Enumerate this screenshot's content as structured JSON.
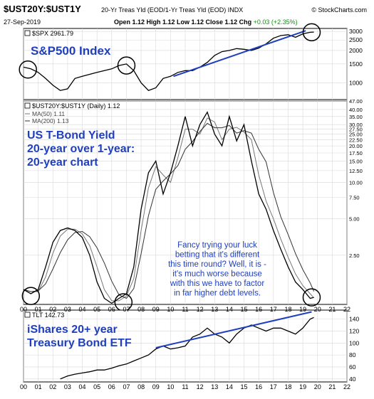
{
  "header": {
    "ticker": "$UST20Y:$UST1Y",
    "subtitle": "20-Yr Treas Yld (EOD/1-Yr Treas Yld (EOD) INDX",
    "brand": "© StockCharts.com",
    "date": "27-Sep-2019",
    "ohlc": "Open 1.12  High 1.12  Low 1.12  Close 1.12  Chg",
    "change": "+0.03 (+2.35%)"
  },
  "chart_data": [
    {
      "type": "line",
      "panel": "top",
      "legend": "$SPX 2961.79",
      "annotation": "S&P500 Index",
      "annotation_color": "#1f3fbf",
      "yaxis_scale": "log",
      "ylim": [
        700,
        3200
      ],
      "yticks": [
        "3000",
        "2500",
        "2000",
        "1500",
        "1000"
      ],
      "ytick_values": [
        3000,
        2500,
        2000,
        1500,
        1000
      ],
      "x": [
        0,
        0.5,
        1,
        1.5,
        2,
        2.5,
        3,
        3.5,
        4,
        4.5,
        5,
        5.5,
        6,
        6.5,
        7,
        7.5,
        8,
        8.5,
        9,
        9.5,
        10,
        10.5,
        11,
        11.5,
        12,
        12.5,
        13,
        13.5,
        14,
        14.5,
        15,
        15.5,
        16,
        16.5,
        17,
        17.5,
        18,
        18.5,
        19,
        19.5,
        19.75
      ],
      "values": [
        1400,
        1350,
        1250,
        1100,
        950,
        850,
        880,
        1100,
        1150,
        1200,
        1250,
        1300,
        1350,
        1450,
        1500,
        1300,
        1000,
        850,
        900,
        1100,
        1150,
        1250,
        1300,
        1300,
        1400,
        1550,
        1800,
        1950,
        2000,
        2080,
        2050,
        2000,
        2100,
        2300,
        2600,
        2750,
        2800,
        2650,
        2850,
        2950,
        2961.79
      ],
      "trendline": {
        "x": [
          10.2,
          19.2
        ],
        "y": [
          1150,
          3050
        ],
        "color": "#1f3fbf"
      },
      "circles": [
        {
          "x": 0.3,
          "y": 1330
        },
        {
          "x": 7.0,
          "y": 1450
        },
        {
          "x": 19.6,
          "y": 2950
        }
      ]
    },
    {
      "type": "line",
      "panel": "middle",
      "legend": "$UST20Y:$UST1Y (Daily) 1.12",
      "legend_ma50": "MA(50) 1.11",
      "legend_ma200": "MA(200) 1.13",
      "annotation_lines": [
        "US T-Bond Yield",
        "20-year over 1-year:",
        "20-year chart"
      ],
      "annotation_color": "#1f3fbf",
      "note_lines": [
        "Fancy trying your luck",
        "betting that it's different",
        "this time round? Well, it is -",
        "it's much worse because",
        "with this we have to factor",
        "in far higher debt levels."
      ],
      "note_color": "#1f3fbf",
      "yaxis_scale": "log",
      "ylim": [
        0.98,
        47
      ],
      "yticks": [
        "47.00",
        "40.00",
        "35.00",
        "30.00",
        "27.50",
        "25.00",
        "22.50",
        "20.00",
        "17.50",
        "15.00",
        "12.50",
        "10.00",
        "7.50",
        "5.00",
        "2.50"
      ],
      "ytick_values": [
        47,
        40,
        35,
        30,
        27.5,
        25,
        22.5,
        20,
        17.5,
        15,
        12.5,
        10,
        7.5,
        5,
        2.5
      ],
      "x": [
        0,
        0.5,
        1,
        1.5,
        2,
        2.5,
        3,
        3.5,
        4,
        4.5,
        5,
        5.5,
        6,
        6.5,
        7,
        7.5,
        8,
        8.5,
        9,
        9.5,
        10,
        10.5,
        11,
        11.5,
        12,
        12.5,
        13,
        13.5,
        14,
        14.5,
        15,
        15.5,
        16,
        16.5,
        17,
        17.5,
        18,
        18.5,
        19,
        19.5,
        19.75
      ],
      "values": [
        1.3,
        1.2,
        1.3,
        2.0,
        3.2,
        4.0,
        4.2,
        4.0,
        3.5,
        2.5,
        1.5,
        1.1,
        1.0,
        1.1,
        1.2,
        2.0,
        6.0,
        12,
        15,
        8,
        12,
        20,
        35,
        20,
        30,
        38,
        25,
        20,
        35,
        22,
        30,
        15,
        8,
        6,
        4,
        2.8,
        2.0,
        1.5,
        1.3,
        1.1,
        1.12
      ],
      "circles": [
        {
          "x": 0.5,
          "y": 1.15
        },
        {
          "x": 6.8,
          "y": 1.02
        },
        {
          "x": 19.6,
          "y": 1.12
        }
      ]
    },
    {
      "type": "line",
      "panel": "bottom",
      "legend": "TLT 142.73",
      "annotation_lines": [
        "iShares  20+  year",
        "Treasury Bond ETF"
      ],
      "annotation_color": "#1f3fbf",
      "ylim": [
        35,
        155
      ],
      "yticks": [
        "140",
        "120",
        "100",
        "80",
        "60",
        "40"
      ],
      "ytick_values": [
        140,
        120,
        100,
        80,
        60,
        40
      ],
      "x": [
        2.5,
        3,
        3.5,
        4,
        4.5,
        5,
        5.5,
        6,
        6.5,
        7,
        7.5,
        8,
        8.5,
        9,
        9.5,
        10,
        10.5,
        11,
        11.5,
        12,
        12.5,
        13,
        13.5,
        14,
        14.5,
        15,
        15.5,
        16,
        16.5,
        17,
        17.5,
        18,
        18.5,
        19,
        19.5,
        19.75
      ],
      "values": [
        40,
        45,
        48,
        50,
        52,
        55,
        55,
        58,
        62,
        65,
        70,
        75,
        80,
        90,
        95,
        90,
        92,
        95,
        110,
        115,
        125,
        115,
        110,
        100,
        115,
        125,
        130,
        125,
        120,
        125,
        125,
        120,
        115,
        125,
        140,
        142.73
      ],
      "trendline": {
        "x": [
          9.0,
          19.6
        ],
        "y": [
          92,
          152
        ],
        "color": "#1f3fbf"
      }
    }
  ],
  "xaxis": {
    "xlim": [
      0,
      22
    ],
    "labels": [
      "00",
      "01",
      "02",
      "03",
      "04",
      "05",
      "06",
      "07",
      "08",
      "09",
      "10",
      "11",
      "12",
      "13",
      "14",
      "15",
      "16",
      "17",
      "18",
      "19",
      "20",
      "21",
      "22"
    ]
  }
}
